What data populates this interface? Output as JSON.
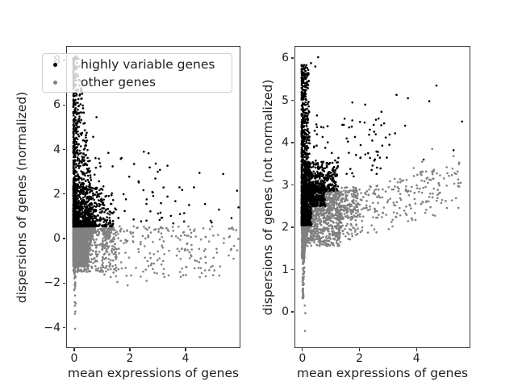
{
  "figure": {
    "background": "#ffffff"
  },
  "colors": {
    "highly_variable": "#000000",
    "other": "#808080",
    "spine": "#3a3a3a",
    "tick": "#2f2f2f",
    "text": "#1f1f1f",
    "legend_border": "#cfcfcf",
    "legend_background": "rgba(255,255,255,0.8)"
  },
  "legend": {
    "position": "upper left",
    "items": [
      {
        "label": "highly variable genes",
        "color": "#000000"
      },
      {
        "label": "other genes",
        "color": "#808080"
      }
    ]
  },
  "chart_data": [
    {
      "type": "scatter",
      "title": "",
      "xlabel": "mean expressions of genes",
      "ylabel": "dispersions of genes (normalized)",
      "xlim": [
        -0.29,
        5.97
      ],
      "ylim": [
        -4.92,
        8.65
      ],
      "grid": false,
      "xticks": [
        {
          "v": 0,
          "label": "0"
        },
        {
          "v": 2,
          "label": "2"
        },
        {
          "v": 4,
          "label": "4"
        }
      ],
      "yticks": [
        {
          "v": -4,
          "label": "−4"
        },
        {
          "v": -2,
          "label": "−2"
        },
        {
          "v": 0,
          "label": "0"
        },
        {
          "v": 2,
          "label": "2"
        },
        {
          "v": 4,
          "label": "4"
        },
        {
          "v": 6,
          "label": "6"
        },
        {
          "v": 8,
          "label": "8"
        }
      ],
      "cutoff_between_series_y": 0.55,
      "marker_radius_px": 1.3,
      "series": [
        {
          "name": "highly variable genes",
          "color": "#000000",
          "clusters": [
            {
              "kind": "col",
              "n": 1250,
              "x0": -0.03,
              "w0": 0.8,
              "w1": 0.2,
              "xpow": 2.3,
              "y0": 0.55,
              "y1": 8.2,
              "ypow": 3.4
            },
            {
              "kind": "box",
              "n": 500,
              "xa": -0.03,
              "xb": 1.4,
              "xpow": 2.4,
              "ya": 0.55,
              "yb": 2.4,
              "ypow": 1.9
            },
            {
              "kind": "box",
              "n": 60,
              "xa": 0.7,
              "xb": 5.0,
              "xpow": 1.7,
              "ya": 0.58,
              "yb": 2.6,
              "ypow": 1.4
            },
            {
              "kind": "box",
              "n": 22,
              "xa": 0.55,
              "xb": 3.2,
              "xpow": 1.5,
              "ya": 2.4,
              "yb": 3.9,
              "ypow": 1.4
            }
          ],
          "points": [
            [
              0.8,
              5.45
            ],
            [
              0.45,
              4.75
            ],
            [
              0.68,
              4.57
            ],
            [
              2.5,
              3.9
            ],
            [
              1.7,
              3.62
            ],
            [
              2.15,
              3.35
            ],
            [
              3.35,
              3.27
            ],
            [
              3.0,
              3.0
            ],
            [
              4.5,
              2.95
            ],
            [
              5.35,
              2.9
            ],
            [
              4.3,
              2.3
            ],
            [
              5.85,
              2.15
            ],
            [
              5.2,
              1.3
            ],
            [
              4.7,
              1.55
            ],
            [
              5.9,
              1.4
            ],
            [
              5.65,
              0.92
            ],
            [
              3.8,
              1.1
            ],
            [
              4.9,
              0.8
            ]
          ]
        },
        {
          "name": "other genes",
          "color": "#808080",
          "clusters": [
            {
              "kind": "col",
              "n": 1400,
              "x0": -0.03,
              "w0": 0.72,
              "w1": 0.5,
              "xpow": 1.9,
              "y0": 0.5,
              "y1": -1.25,
              "ypow": 1.15
            },
            {
              "kind": "box",
              "n": 500,
              "xa": -0.03,
              "xb": 1.5,
              "xpow": 2.1,
              "ya": 0.5,
              "yb": -1.5,
              "ypow": 1.25
            },
            {
              "kind": "box",
              "n": 280,
              "xa": 1.0,
              "xb": 5.9,
              "xpow": 1.7,
              "ya": 0.55,
              "yb": -1.75,
              "ypow": 1.2
            },
            {
              "kind": "col",
              "n": 90,
              "x0": -0.01,
              "w0": 0.09,
              "w1": 0.05,
              "xpow": 1.0,
              "y0": 0.3,
              "y1": -2.75,
              "ypow": 1.7
            }
          ],
          "points": [
            [
              0.02,
              -2.85
            ],
            [
              0.05,
              -2.92
            ],
            [
              0.02,
              -3.02
            ],
            [
              0.04,
              -3.28
            ],
            [
              0.02,
              -3.38
            ],
            [
              0.03,
              -4.05
            ],
            [
              1.92,
              -2.1
            ],
            [
              2.6,
              -1.9
            ],
            [
              1.55,
              -1.95
            ],
            [
              5.74,
              -0.33
            ],
            [
              5.55,
              -0.76
            ]
          ]
        }
      ]
    },
    {
      "type": "scatter",
      "title": "",
      "xlabel": "mean expressions of genes",
      "ylabel": "dispersions of genes (not normalized)",
      "xlim": [
        -0.28,
        5.89
      ],
      "ylim": [
        -0.857,
        6.286
      ],
      "grid": false,
      "xticks": [
        {
          "v": 0,
          "label": "0"
        },
        {
          "v": 2,
          "label": "2"
        },
        {
          "v": 4,
          "label": "4"
        }
      ],
      "yticks": [
        {
          "v": 0,
          "label": "0"
        },
        {
          "v": 1,
          "label": "1"
        },
        {
          "v": 2,
          "label": "2"
        },
        {
          "v": 3,
          "label": "3"
        },
        {
          "v": 4,
          "label": "4"
        },
        {
          "v": 5,
          "label": "5"
        },
        {
          "v": 6,
          "label": "6"
        }
      ],
      "cutoff_between_series_y": 2.05,
      "marker_radius_px": 1.3,
      "series": [
        {
          "name": "highly variable genes",
          "color": "#000000",
          "clusters": [
            {
              "kind": "col",
              "n": 1000,
              "x0": -0.03,
              "w0": 0.34,
              "w1": 0.24,
              "xpow": 2.0,
              "y0": 2.05,
              "y1": 5.85,
              "ypow": 2.2
            },
            {
              "kind": "box",
              "n": 320,
              "xa": -0.03,
              "xb": 0.32,
              "xpow": 1.6,
              "ya": 2.05,
              "yb": 2.95,
              "ypow": 1.2
            },
            {
              "kind": "box",
              "n": 280,
              "xa": 0.28,
              "xb": 0.8,
              "xpow": 1.5,
              "ya": 2.5,
              "yb": 3.05,
              "ypow": 1.2
            },
            {
              "kind": "box",
              "n": 380,
              "xa": 0.08,
              "xb": 1.25,
              "xpow": 1.9,
              "ya": 2.85,
              "yb": 3.55,
              "ypow": 1.3
            },
            {
              "kind": "box",
              "n": 80,
              "xa": 0.4,
              "xb": 3.1,
              "xpow": 1.6,
              "ya": 3.2,
              "yb": 4.65,
              "ypow": 1.5
            }
          ],
          "points": [
            [
              0.55,
              6.02
            ],
            [
              0.3,
              5.88
            ],
            [
              0.45,
              5.8
            ],
            [
              0.2,
              5.72
            ],
            [
              1.75,
              4.95
            ],
            [
              4.7,
              5.35
            ],
            [
              3.3,
              5.13
            ],
            [
              3.7,
              5.05
            ],
            [
              4.45,
              4.98
            ],
            [
              2.2,
              4.9
            ],
            [
              2.77,
              4.73
            ],
            [
              2.67,
              4.57
            ],
            [
              5.6,
              4.5
            ],
            [
              1.4,
              4.42
            ],
            [
              3.6,
              4.4
            ],
            [
              3.25,
              4.22
            ],
            [
              1.55,
              4.1
            ],
            [
              2.45,
              4.05
            ],
            [
              3.05,
              3.95
            ],
            [
              2.8,
              3.93
            ],
            [
              5.3,
              3.82
            ],
            [
              4.25,
              3.6
            ]
          ]
        },
        {
          "name": "other genes",
          "color": "#808080",
          "clusters": [
            {
              "kind": "box",
              "n": 900,
              "xa": 0.08,
              "xb": 1.35,
              "xpow": 1.7,
              "ya": 2.85,
              "yb": 1.55,
              "ypow": 1.2
            },
            {
              "kind": "box",
              "n": 300,
              "xa": 0.3,
              "xb": 1.95,
              "xpow": 1.4,
              "ya": 2.95,
              "yb": 2.2,
              "ypow": 1.1
            },
            {
              "kind": "col",
              "n": 260,
              "x0": -0.02,
              "w0": 0.13,
              "w1": 0.09,
              "xpow": 1.2,
              "y0": 2.0,
              "y1": 1.25,
              "ypow": 1.2
            },
            {
              "kind": "col",
              "n": 80,
              "x0": 0.0,
              "w0": 0.08,
              "w1": 0.04,
              "xpow": 1.0,
              "y0": 1.5,
              "y1": 0.3,
              "ypow": 1.6
            },
            {
              "kind": "box",
              "n": 340,
              "xa": 1.2,
              "xb": 5.5,
              "xpow": 1.7,
              "ya": 1.62,
              "yb": 2.78,
              "ypow": 0.85,
              "slope": 0.18
            }
          ],
          "points": [
            [
              0.08,
              0.15
            ],
            [
              0.1,
              -0.03
            ],
            [
              0.09,
              -0.45
            ],
            [
              4.55,
              3.85
            ],
            [
              5.3,
              3.68
            ],
            [
              4.6,
              3.32
            ],
            [
              5.55,
              3.05
            ],
            [
              4.2,
              3.55
            ],
            [
              3.9,
              3.4
            ]
          ]
        }
      ]
    }
  ]
}
